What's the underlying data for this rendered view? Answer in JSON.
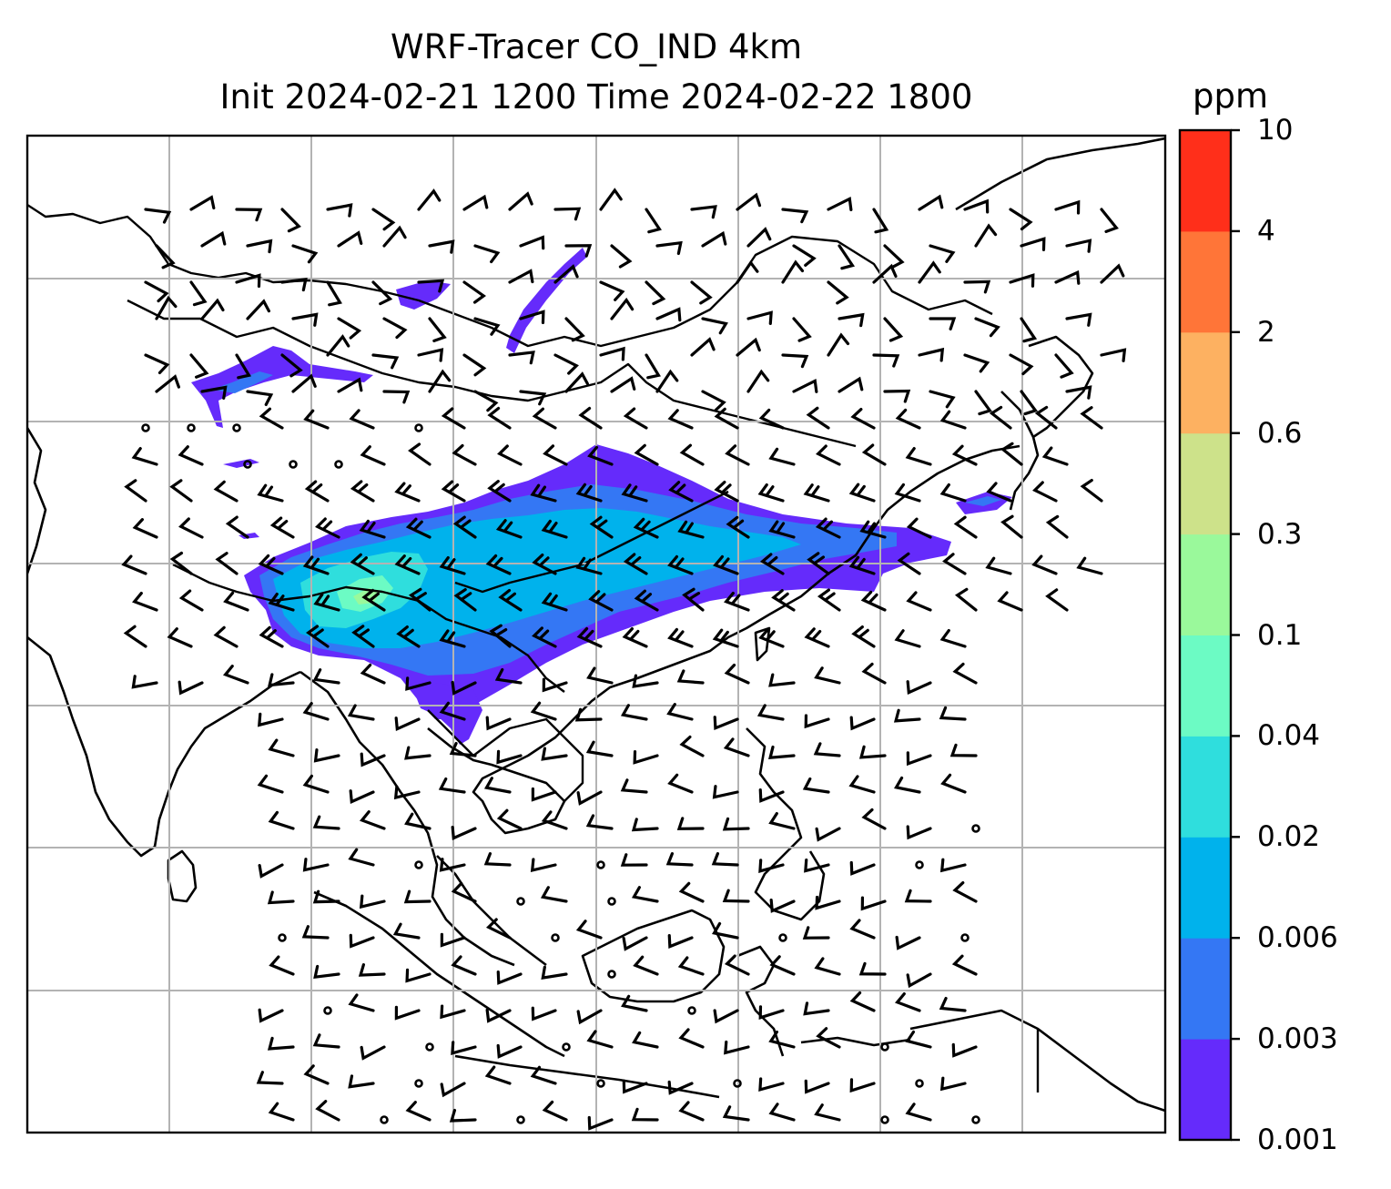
{
  "title": {
    "line1": "WRF-Tracer CO_IND 4km",
    "line2": "Init 2024-02-21 1200 Time 2024-02-22 1800"
  },
  "colorbar": {
    "unit": "ppm",
    "ticks": [
      "0.001",
      "0.003",
      "0.006",
      "0.02",
      "0.04",
      "0.1",
      "0.3",
      "0.6",
      "2",
      "4",
      "10"
    ],
    "colors": [
      "#652bfb",
      "#3477f4",
      "#00b2ec",
      "#2fdedd",
      "#6cfbc4",
      "#9af99b",
      "#cde28a",
      "#fdb161",
      "#ff7538",
      "#ff2f1a"
    ]
  },
  "map": {
    "gridlines": true,
    "features": [
      "coastlines",
      "country-borders",
      "wind-barbs",
      "co-plume"
    ]
  }
}
